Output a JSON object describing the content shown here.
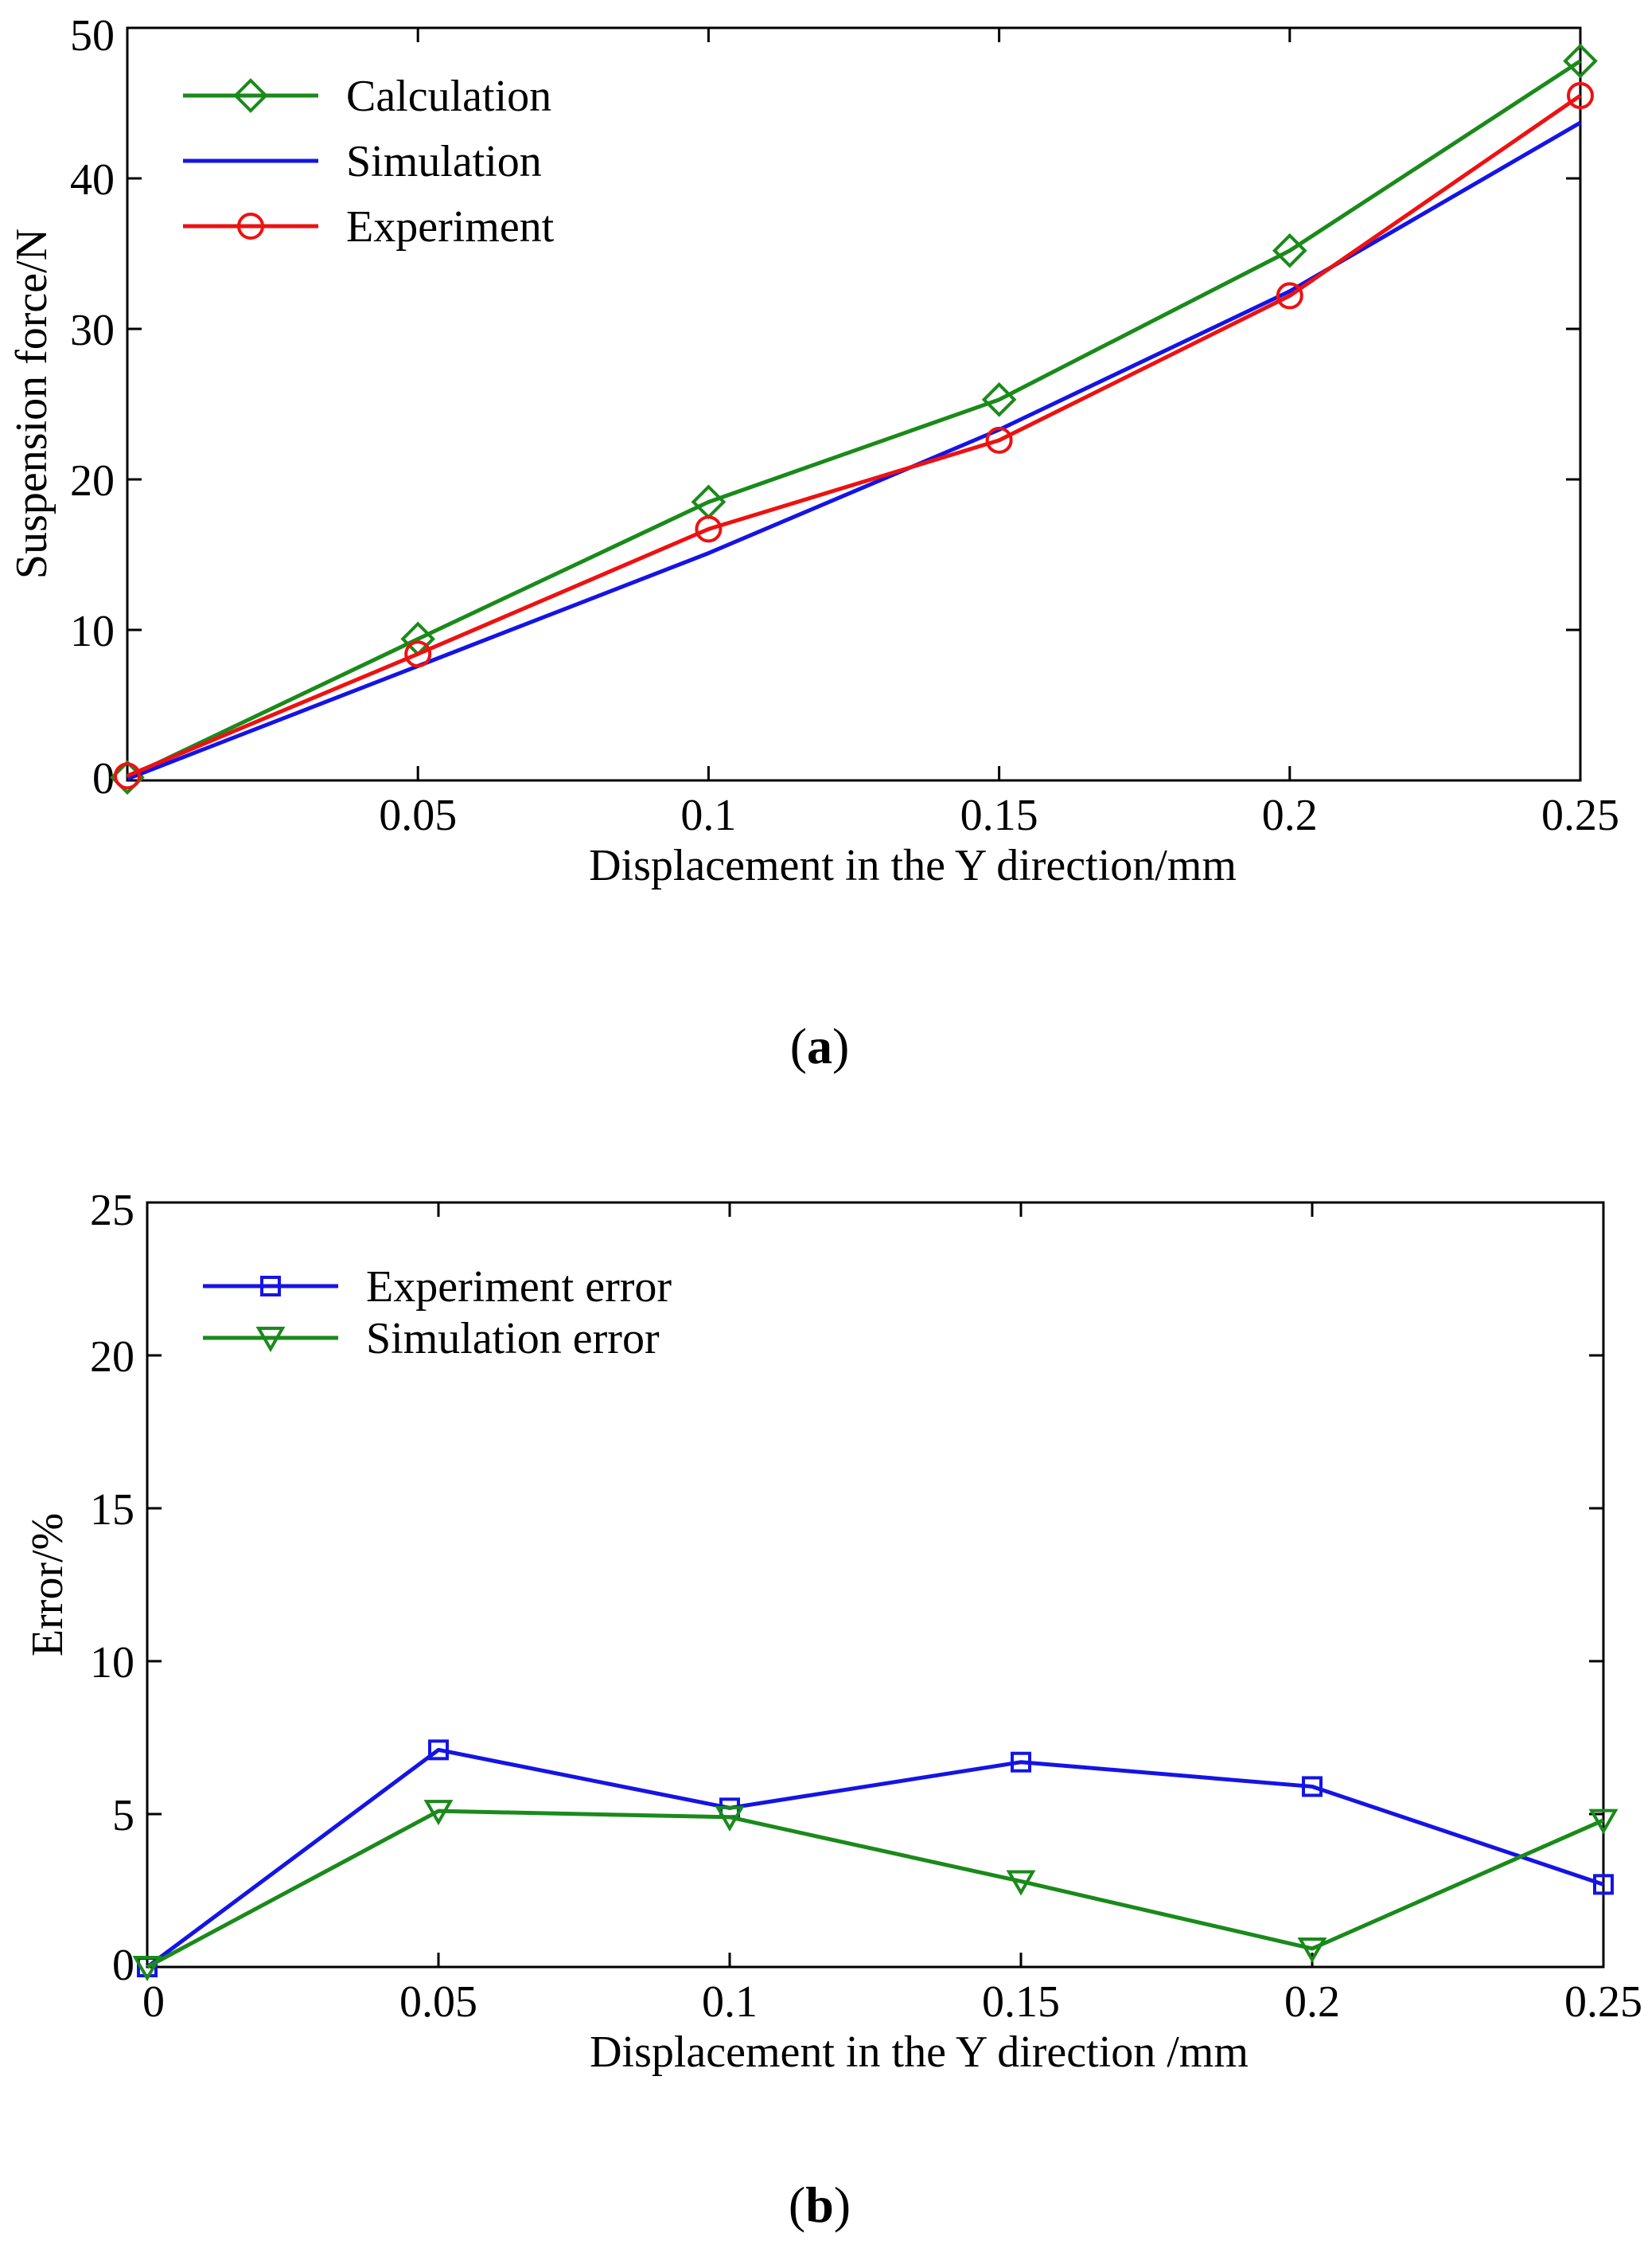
{
  "chart_data": [
    {
      "panel": "a",
      "type": "line",
      "caption": {
        "open": "(",
        "letter": "a",
        "close": ")"
      },
      "xlabel": "Displacement in the Y direction/mm",
      "ylabel": "Suspension force/N",
      "xlim": [
        0,
        0.25
      ],
      "ylim": [
        0,
        50
      ],
      "xticks": [
        0.05,
        0.1,
        0.15,
        0.2,
        0.25
      ],
      "xtick_labels": [
        "0.05",
        "0.1",
        "0.15",
        "0.2",
        "0.25"
      ],
      "yticks": [
        0,
        10,
        20,
        30,
        40,
        50
      ],
      "ytick_labels": [
        "0",
        "10",
        "20",
        "30",
        "40",
        "50"
      ],
      "legend_position": "top-left",
      "series": [
        {
          "name": "Calculation",
          "color": "#1a8a1a",
          "marker": "diamond",
          "x": [
            0,
            0.05,
            0.1,
            0.15,
            0.2,
            0.25
          ],
          "y": [
            0.2,
            9.4,
            18.5,
            25.3,
            35.2,
            47.8
          ]
        },
        {
          "name": "Simulation",
          "color": "#1414e6",
          "marker": "none",
          "x": [
            0,
            0.05,
            0.1,
            0.15,
            0.2,
            0.25
          ],
          "y": [
            0.1,
            7.6,
            15.1,
            23.3,
            32.5,
            43.7
          ]
        },
        {
          "name": "Experiment",
          "color": "#ee1111",
          "marker": "circle",
          "x": [
            0,
            0.05,
            0.1,
            0.15,
            0.2,
            0.25
          ],
          "y": [
            0.3,
            8.4,
            16.7,
            22.6,
            32.2,
            45.5
          ]
        }
      ]
    },
    {
      "panel": "b",
      "type": "line",
      "caption": {
        "open": "(",
        "letter": "b",
        "close": ")"
      },
      "xlabel": "Displacement in the Y direction /mm",
      "ylabel": "Error/%",
      "xlim": [
        0,
        0.25
      ],
      "ylim": [
        0,
        25
      ],
      "xticks": [
        0,
        0.05,
        0.1,
        0.15,
        0.2,
        0.25
      ],
      "xtick_labels": [
        "0",
        "0.05",
        "0.1",
        "0.15",
        "0.2",
        "0.25"
      ],
      "yticks": [
        0,
        5,
        10,
        15,
        20,
        25
      ],
      "ytick_labels": [
        "0",
        "5",
        "10",
        "15",
        "20",
        "25"
      ],
      "legend_position": "top-left",
      "series": [
        {
          "name": "Experiment error",
          "color": "#1414e6",
          "marker": "square",
          "x": [
            0,
            0.05,
            0.1,
            0.15,
            0.2,
            0.25
          ],
          "y": [
            0,
            7.1,
            5.2,
            6.7,
            5.9,
            2.7
          ]
        },
        {
          "name": "Simulation error",
          "color": "#1a8a1a",
          "marker": "triangle-down",
          "x": [
            0,
            0.05,
            0.1,
            0.15,
            0.2,
            0.25
          ],
          "y": [
            0,
            5.1,
            4.9,
            2.8,
            0.6,
            4.8
          ]
        }
      ]
    }
  ]
}
